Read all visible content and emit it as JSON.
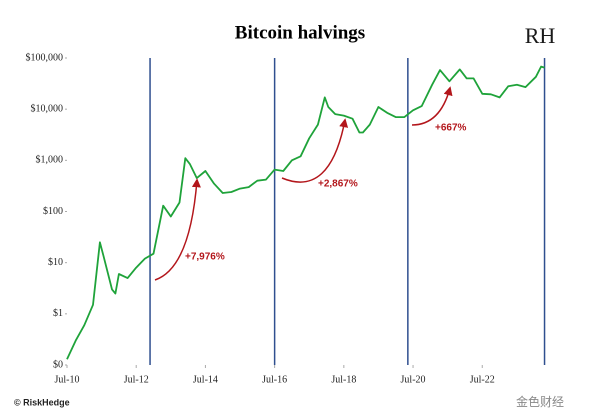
{
  "chart_data": {
    "type": "line",
    "title": "Bitcoin halvings",
    "logo": "RH",
    "source": "© RiskHedge",
    "watermark": "金色财经",
    "log_scale": true,
    "color": "#1fa33a",
    "halving_color": "#2f4f8f",
    "annotation_color": "#b3161b",
    "x": [
      2010.5,
      2010.75,
      2011.0,
      2011.25,
      2011.45,
      2011.55,
      2011.8,
      2011.9,
      2012.0,
      2012.25,
      2012.5,
      2012.75,
      2013.0,
      2013.28,
      2013.5,
      2013.75,
      2013.92,
      2014.05,
      2014.25,
      2014.5,
      2014.75,
      2015.0,
      2015.25,
      2015.5,
      2015.75,
      2016.0,
      2016.25,
      2016.5,
      2016.75,
      2017.0,
      2017.25,
      2017.5,
      2017.75,
      2017.95,
      2018.05,
      2018.25,
      2018.5,
      2018.75,
      2018.95,
      2019.05,
      2019.25,
      2019.5,
      2019.75,
      2020.0,
      2020.25,
      2020.5,
      2020.75,
      2021.05,
      2021.28,
      2021.55,
      2021.85,
      2022.05,
      2022.25,
      2022.5,
      2022.75,
      2023.0,
      2023.25,
      2023.5,
      2023.75,
      2024.05,
      2024.2,
      2024.3
    ],
    "values": [
      0.13,
      0.3,
      0.6,
      1.5,
      25,
      14,
      3,
      2.5,
      6,
      5,
      8,
      12,
      15,
      130,
      80,
      150,
      1100,
      850,
      450,
      620,
      350,
      230,
      240,
      280,
      300,
      400,
      420,
      660,
      620,
      1000,
      1200,
      2700,
      5000,
      17000,
      11000,
      8000,
      7500,
      6500,
      3500,
      3500,
      5000,
      11000,
      8500,
      7000,
      7000,
      9500,
      11500,
      30000,
      58000,
      35000,
      60000,
      40000,
      40000,
      20000,
      19500,
      17000,
      28000,
      30000,
      27000,
      43000,
      68000,
      65000
    ],
    "halvings": [
      2012.9,
      2016.5,
      2020.35,
      2024.3
    ],
    "annotations": [
      "+7,976%",
      "+2,867%",
      "+667%"
    ],
    "xlim": [
      2010.5,
      2024.4
    ],
    "xticks": [
      {
        "value": 2010.5,
        "label": "Jul-10"
      },
      {
        "value": 2012.5,
        "label": "Jul-12"
      },
      {
        "value": 2014.5,
        "label": "Jul-14"
      },
      {
        "value": 2016.5,
        "label": "Jul-16"
      },
      {
        "value": 2018.5,
        "label": "Jul-18"
      },
      {
        "value": 2020.5,
        "label": "Jul-20"
      },
      {
        "value": 2022.5,
        "label": "Jul-22"
      }
    ],
    "ylim": [
      0.1,
      100000
    ],
    "yticks": [
      {
        "value": 0.1,
        "label": "$0"
      },
      {
        "value": 1,
        "label": "$1"
      },
      {
        "value": 10,
        "label": "$10"
      },
      {
        "value": 100,
        "label": "$100"
      },
      {
        "value": 1000,
        "label": "$1,000"
      },
      {
        "value": 10000,
        "label": "$10,000"
      },
      {
        "value": 100000,
        "label": "$100,000"
      }
    ]
  }
}
